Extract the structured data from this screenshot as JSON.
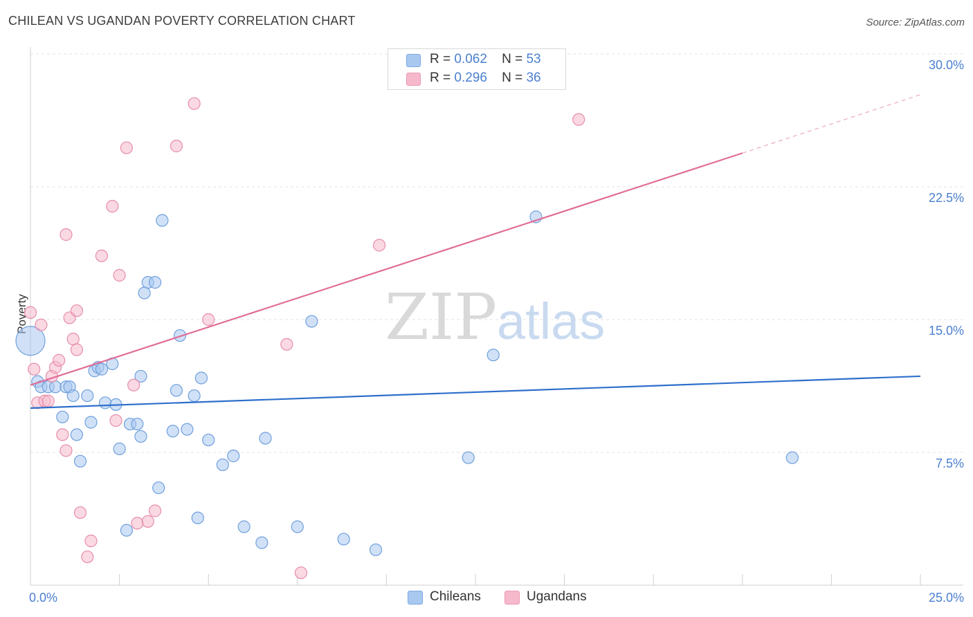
{
  "header": {
    "title": "CHILEAN VS UGANDAN POVERTY CORRELATION CHART",
    "source": "Source: ZipAtlas.com"
  },
  "watermark": {
    "zip": "ZIP",
    "atlas": "atlas"
  },
  "legend": {
    "rows": [
      {
        "r_label": "R =",
        "r_value": "0.062",
        "n_label": "N =",
        "n_value": "53",
        "color": "#a9c8f0"
      },
      {
        "r_label": "R =",
        "r_value": "0.296",
        "n_label": "N =",
        "n_value": "36",
        "color": "#f6b9cc"
      }
    ],
    "bottom": [
      "Chileans",
      "Ugandans"
    ]
  },
  "chart_data": {
    "type": "scatter",
    "title": "CHILEAN VS UGANDAN POVERTY CORRELATION CHART",
    "xlabel": "",
    "ylabel": "Poverty",
    "xlim": [
      0,
      25
    ],
    "ylim": [
      0,
      30
    ],
    "x_tick_labels": [
      "0.0%",
      "25.0%"
    ],
    "y_ticks": [
      7.5,
      15.0,
      22.5,
      30.0
    ],
    "y_tick_labels": [
      "7.5%",
      "15.0%",
      "22.5%",
      "30.0%"
    ],
    "grid": true,
    "legend_position": "top-center",
    "series": [
      {
        "name": "Chileans",
        "color": "#a9c8f0",
        "stroke": "#6f9fdc",
        "line_color": "#2f6fcc",
        "trend": {
          "x": [
            0,
            25
          ],
          "y": [
            10.0,
            11.8
          ]
        },
        "points": [
          [
            0.0,
            13.8
          ],
          [
            0.2,
            11.5
          ],
          [
            0.3,
            11.2
          ],
          [
            0.5,
            11.2
          ],
          [
            0.7,
            11.2
          ],
          [
            0.9,
            9.5
          ],
          [
            1.0,
            11.2
          ],
          [
            1.1,
            11.2
          ],
          [
            1.2,
            10.7
          ],
          [
            1.3,
            8.5
          ],
          [
            1.4,
            7.0
          ],
          [
            1.6,
            10.7
          ],
          [
            1.7,
            9.2
          ],
          [
            1.8,
            12.1
          ],
          [
            1.9,
            12.3
          ],
          [
            2.0,
            12.2
          ],
          [
            2.1,
            10.3
          ],
          [
            2.3,
            12.5
          ],
          [
            2.4,
            10.2
          ],
          [
            2.5,
            7.7
          ],
          [
            2.7,
            3.1
          ],
          [
            2.8,
            9.1
          ],
          [
            3.0,
            9.1
          ],
          [
            3.1,
            11.8
          ],
          [
            3.1,
            8.4
          ],
          [
            3.2,
            16.5
          ],
          [
            3.3,
            17.1
          ],
          [
            3.5,
            17.1
          ],
          [
            3.6,
            5.5
          ],
          [
            3.7,
            20.6
          ],
          [
            4.0,
            8.7
          ],
          [
            4.1,
            11.0
          ],
          [
            4.2,
            14.1
          ],
          [
            4.4,
            8.8
          ],
          [
            4.6,
            10.7
          ],
          [
            4.7,
            3.8
          ],
          [
            4.8,
            11.7
          ],
          [
            5.0,
            8.2
          ],
          [
            5.4,
            6.8
          ],
          [
            5.7,
            7.3
          ],
          [
            6.0,
            3.3
          ],
          [
            6.5,
            2.4
          ],
          [
            6.6,
            8.3
          ],
          [
            7.5,
            3.3
          ],
          [
            7.9,
            14.9
          ],
          [
            8.8,
            2.6
          ],
          [
            9.7,
            2.0
          ],
          [
            12.3,
            7.2
          ],
          [
            13.0,
            13.0
          ],
          [
            14.2,
            20.8
          ],
          [
            21.4,
            7.2
          ]
        ]
      },
      {
        "name": "Ugandans",
        "color": "#f6b9cc",
        "stroke": "#e68cab",
        "line_color": "#e06d97",
        "trend": {
          "x": [
            0,
            20
          ],
          "y": [
            11.3,
            24.4
          ]
        },
        "trend_dashed": {
          "x": [
            20,
            25
          ],
          "y": [
            24.4,
            27.7
          ]
        },
        "points": [
          [
            0.0,
            15.4
          ],
          [
            0.1,
            12.2
          ],
          [
            0.2,
            10.3
          ],
          [
            0.3,
            14.7
          ],
          [
            0.4,
            10.4
          ],
          [
            0.5,
            10.4
          ],
          [
            0.6,
            11.8
          ],
          [
            0.7,
            12.3
          ],
          [
            0.8,
            12.7
          ],
          [
            0.9,
            8.5
          ],
          [
            1.0,
            19.8
          ],
          [
            1.0,
            7.6
          ],
          [
            1.1,
            15.1
          ],
          [
            1.2,
            13.9
          ],
          [
            1.3,
            13.3
          ],
          [
            1.3,
            15.5
          ],
          [
            1.4,
            4.1
          ],
          [
            1.6,
            1.6
          ],
          [
            1.7,
            2.5
          ],
          [
            2.0,
            18.6
          ],
          [
            2.3,
            21.4
          ],
          [
            2.4,
            9.3
          ],
          [
            2.5,
            17.5
          ],
          [
            2.7,
            24.7
          ],
          [
            2.9,
            11.3
          ],
          [
            3.0,
            3.5
          ],
          [
            3.3,
            3.6
          ],
          [
            3.5,
            4.2
          ],
          [
            4.1,
            24.8
          ],
          [
            4.6,
            27.2
          ],
          [
            5.0,
            15.0
          ],
          [
            7.2,
            13.6
          ],
          [
            7.6,
            0.7
          ],
          [
            9.8,
            19.2
          ],
          [
            15.4,
            26.3
          ]
        ]
      }
    ]
  }
}
